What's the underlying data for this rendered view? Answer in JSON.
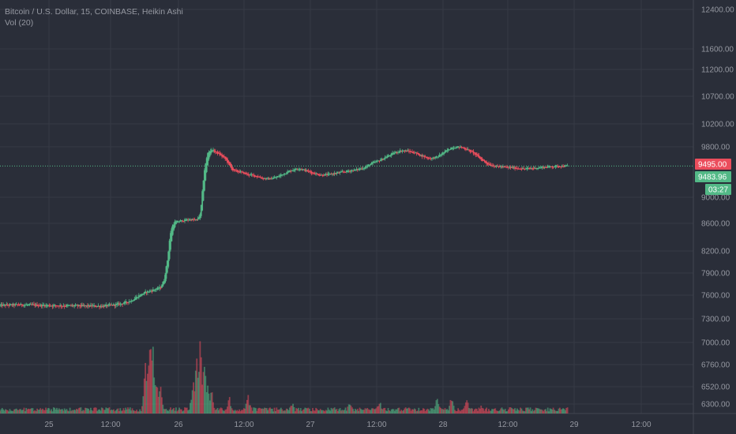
{
  "legend": {
    "line1": "Bitcoin / U.S. Dollar, 15, COINBASE, Heikin Ashi",
    "line2": "Vol (20)"
  },
  "colors": {
    "background": "#2a2e39",
    "grid": "#363a45",
    "up": "#53b987",
    "down": "#eb4d5c",
    "axis_text": "#9598a1",
    "price_line": "#53b987"
  },
  "price_tags": {
    "last_close": "9495.00",
    "current": "9483.96",
    "countdown": "03:27"
  },
  "chart_data": {
    "type": "candlestick",
    "style": "Heikin Ashi",
    "symbol": "Bitcoin / U.S. Dollar",
    "interval": "15",
    "exchange": "COINBASE",
    "indicator": "Vol (20)",
    "price_axis_ticks": [
      "12400.00",
      "11600.00",
      "11200.00",
      "10700.00",
      "10200.00",
      "9800.00",
      "9000.00",
      "8600.00",
      "8200.00",
      "7900.00",
      "7600.00",
      "7300.00",
      "7000.00",
      "6760.00",
      "6520.00",
      "6300.00"
    ],
    "time_axis_ticks": [
      "25",
      "12:00",
      "26",
      "12:00",
      "27",
      "12:00",
      "28",
      "12:00",
      "29",
      "12:00"
    ],
    "last_price": 9495.0,
    "current_price": 9483.96,
    "price_path": [
      [
        0,
        7470
      ],
      [
        6,
        7478
      ],
      [
        12,
        7470
      ],
      [
        20,
        7465
      ],
      [
        28,
        7460
      ],
      [
        32,
        7480
      ],
      [
        34,
        7500
      ],
      [
        36,
        7530
      ],
      [
        38,
        7590
      ],
      [
        40,
        7640
      ],
      [
        42,
        7670
      ],
      [
        44,
        7700
      ],
      [
        45,
        7800
      ],
      [
        46,
        8100
      ],
      [
        46.6,
        8400
      ],
      [
        47.2,
        8560
      ],
      [
        48,
        8620
      ],
      [
        50,
        8640
      ],
      [
        52,
        8660
      ],
      [
        54,
        8650
      ],
      [
        55,
        8740
      ],
      [
        55.6,
        9150
      ],
      [
        56,
        9400
      ],
      [
        56.5,
        9560
      ],
      [
        57,
        9700
      ],
      [
        58,
        9760
      ],
      [
        59,
        9720
      ],
      [
        60,
        9690
      ],
      [
        62,
        9600
      ],
      [
        63,
        9500
      ],
      [
        64,
        9420
      ],
      [
        66,
        9400
      ],
      [
        68,
        9360
      ],
      [
        70,
        9340
      ],
      [
        72,
        9300
      ],
      [
        74,
        9290
      ],
      [
        76,
        9320
      ],
      [
        78,
        9380
      ],
      [
        80,
        9430
      ],
      [
        82,
        9460
      ],
      [
        84,
        9420
      ],
      [
        86,
        9380
      ],
      [
        88,
        9350
      ],
      [
        90,
        9360
      ],
      [
        92,
        9380
      ],
      [
        94,
        9400
      ],
      [
        96,
        9420
      ],
      [
        98,
        9440
      ],
      [
        100,
        9470
      ],
      [
        102,
        9540
      ],
      [
        104,
        9580
      ],
      [
        106,
        9640
      ],
      [
        108,
        9700
      ],
      [
        110,
        9740
      ],
      [
        112,
        9730
      ],
      [
        114,
        9700
      ],
      [
        116,
        9650
      ],
      [
        118,
        9610
      ],
      [
        120,
        9640
      ],
      [
        122,
        9720
      ],
      [
        124,
        9790
      ],
      [
        126,
        9800
      ],
      [
        128,
        9760
      ],
      [
        130,
        9700
      ],
      [
        132,
        9600
      ],
      [
        134,
        9520
      ],
      [
        136,
        9490
      ],
      [
        138,
        9480
      ],
      [
        140,
        9470
      ],
      [
        142,
        9460
      ],
      [
        144,
        9450
      ],
      [
        146,
        9460
      ],
      [
        148,
        9470
      ],
      [
        150,
        9480
      ],
      [
        152,
        9490
      ],
      [
        154,
        9495
      ],
      [
        156,
        9495
      ]
    ],
    "volume_spikes": [
      [
        40,
        0.55
      ],
      [
        41,
        0.98
      ],
      [
        42,
        0.7
      ],
      [
        43,
        0.45
      ],
      [
        44,
        0.35
      ],
      [
        53,
        0.35
      ],
      [
        54,
        0.62
      ],
      [
        55,
        0.82
      ],
      [
        56,
        0.9
      ],
      [
        57,
        0.5
      ],
      [
        58,
        0.3
      ],
      [
        63,
        0.18
      ],
      [
        68,
        0.2
      ],
      [
        80,
        0.15
      ],
      [
        96,
        0.16
      ],
      [
        104,
        0.16
      ],
      [
        120,
        0.22
      ],
      [
        124,
        0.2
      ],
      [
        128,
        0.16
      ],
      [
        132,
        0.12
      ],
      [
        140,
        0.1
      ]
    ]
  }
}
